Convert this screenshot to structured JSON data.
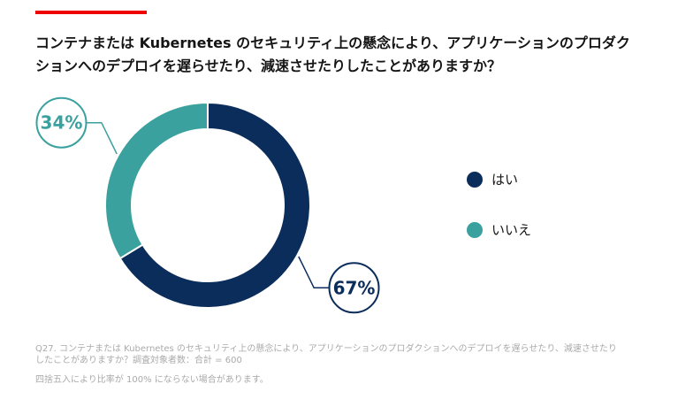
{
  "chart_data": {
    "type": "donut",
    "title": "コンテナまたは Kubernetes のセキュリティ上の懸念により、アプリケーションのプロダクションへのデプロイを遅らせたり、減速させたりしたことがありますか？",
    "categories": [
      "はい",
      "いいえ"
    ],
    "values": [
      67,
      34
    ],
    "value_labels": [
      "67%",
      "34%"
    ],
    "colors": [
      "#0b2d5b",
      "#3aa19e"
    ],
    "footnotes": [
      "Q27. コンテナまたは Kubernetes のセキュリティ上の懸念により、アプリケーションのプロダクションへのデプロイを遅らせたり、減速させたりしたことがありますか？調査対象者数：合計 = 600",
      "四捨五入により比率が 100% にならない場合があります。"
    ]
  }
}
